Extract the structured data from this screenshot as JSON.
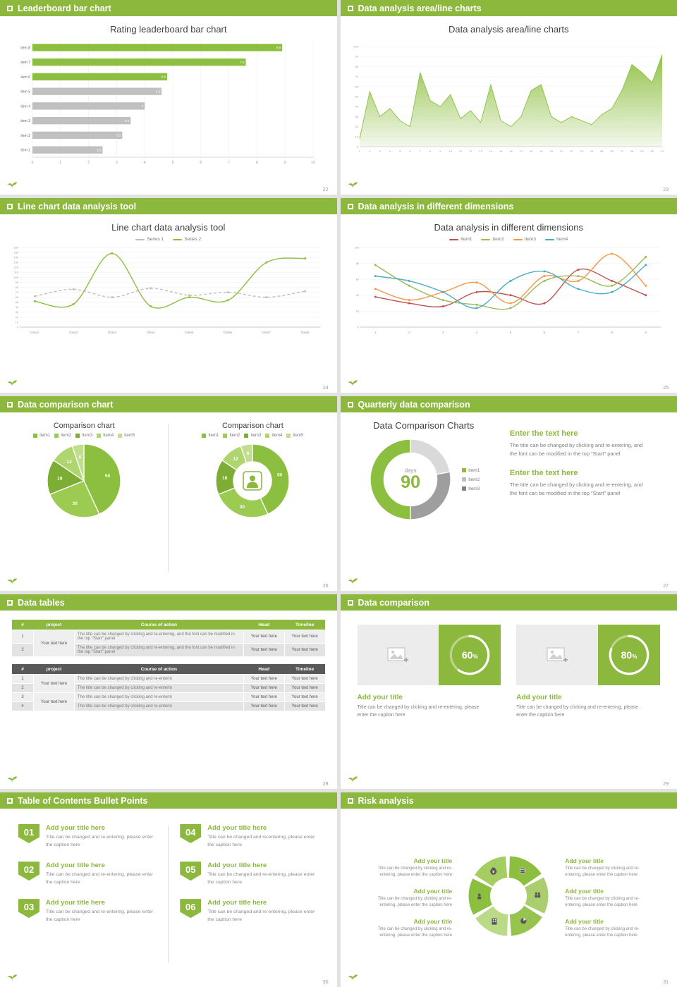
{
  "theme": {
    "accent": "#8CB83E",
    "chart_green": "#8CBF3F",
    "gray_bar": "#C0C0C0",
    "text_dark": "#3F3F3F",
    "text_gray": "#808080"
  },
  "slides": [
    {
      "header": "Leaderboard bar chart",
      "page_num": "22",
      "title": "Rating leaderboard bar chart",
      "chart_data": {
        "type": "barh",
        "categories": [
          "item 8",
          "item 7",
          "item 6",
          "item 5",
          "item 4",
          "item 3",
          "item 2",
          "item 1"
        ],
        "values": [
          8.9,
          7.6,
          4.8,
          4.6,
          4,
          3.5,
          3.2,
          2.5
        ],
        "colors": [
          "#8CBF3F",
          "#8CBF3F",
          "#8CBF3F",
          "#C0C0C0",
          "#C0C0C0",
          "#C0C0C0",
          "#C0C0C0",
          "#C0C0C0"
        ],
        "xlim": [
          0,
          10
        ],
        "xticks": [
          0,
          1,
          2,
          3,
          4,
          5,
          6,
          7,
          8,
          9,
          10
        ]
      }
    },
    {
      "header": "Data analysis area/line charts",
      "page_num": "23",
      "title": "Data analysis area/line charts",
      "chart_data": {
        "type": "area",
        "x": [
          1,
          2,
          3,
          4,
          5,
          6,
          7,
          8,
          9,
          10,
          11,
          12,
          13,
          14,
          15,
          16,
          17,
          18,
          19,
          20,
          21,
          22,
          23,
          24,
          25,
          26,
          27,
          28,
          29,
          30,
          31
        ],
        "values": [
          8,
          55,
          30,
          38,
          26,
          20,
          74,
          46,
          40,
          52,
          28,
          36,
          24,
          62,
          26,
          20,
          30,
          56,
          62,
          30,
          24,
          30,
          26,
          22,
          32,
          38,
          56,
          82,
          74,
          64,
          92
        ],
        "ylim": [
          0,
          100
        ],
        "ystep": 10,
        "color": "#8CBF3F"
      }
    },
    {
      "header": "Line chart data analysis tool",
      "page_num": "24",
      "title": "Line chart data analysis tool",
      "chart_data": {
        "type": "line",
        "categories": [
          "Data1",
          "Data2",
          "Data3",
          "Data4",
          "Data5",
          "Data6",
          "Data7",
          "Data8"
        ],
        "ylim": [
          0,
          160
        ],
        "ystep": 10,
        "series": [
          {
            "name": "Series 1",
            "color": "#BFBFBF",
            "dash": "4 3",
            "values": [
              62,
              76,
              60,
              78,
              64,
              70,
              60,
              72
            ]
          },
          {
            "name": "Series 2",
            "color": "#8CBF3F",
            "dash": "",
            "values": [
              52,
              46,
              148,
              42,
              60,
              54,
              130,
              138
            ]
          }
        ]
      }
    },
    {
      "header": "Data analysis in different dimensions",
      "page_num": "25",
      "title": "Data analysis in different dimensions",
      "chart_data": {
        "type": "line",
        "categories": [
          "1",
          "2",
          "3",
          "4",
          "5",
          "6",
          "7",
          "8",
          "9"
        ],
        "ylim": [
          0,
          100
        ],
        "ystep": 20,
        "series": [
          {
            "name": "Item1",
            "color": "#C0504D",
            "dash": "",
            "values": [
              38,
              30,
              26,
              44,
              40,
              30,
              72,
              58,
              40
            ]
          },
          {
            "name": "Item2",
            "color": "#9BBB59",
            "dash": "",
            "values": [
              78,
              52,
              34,
              28,
              24,
              58,
              64,
              52,
              88
            ]
          },
          {
            "name": "Item3",
            "color": "#F79646",
            "dash": "",
            "values": [
              48,
              34,
              44,
              56,
              30,
              64,
              58,
              92,
              52
            ]
          },
          {
            "name": "Item4",
            "color": "#4BACC6",
            "dash": "",
            "values": [
              64,
              58,
              44,
              24,
              58,
              70,
              48,
              44,
              78
            ]
          }
        ]
      }
    },
    {
      "header": "Data comparison chart",
      "page_num": "26",
      "left": {
        "title": "Comparison chart",
        "legend": [
          "Item1",
          "Item2",
          "Item3",
          "Item4",
          "Item5"
        ]
      },
      "right": {
        "title": "Comparison chart",
        "legend": [
          "Item1",
          "Item2",
          "Item3",
          "Item4",
          "Item5"
        ]
      },
      "chart_data": [
        {
          "type": "pie",
          "values": [
            50,
            30,
            18,
            12,
            6
          ],
          "labels": [
            "50",
            "30",
            "18",
            "12",
            "6"
          ],
          "colors": [
            "#8CBF3F",
            "#9CCB52",
            "#7EAD36",
            "#AFD56F",
            "#C2DE8C"
          ]
        },
        {
          "type": "pie",
          "donut": 0.52,
          "values": [
            50,
            30,
            18,
            12,
            6
          ],
          "labels": [
            "50",
            "30",
            "18",
            "12",
            "6"
          ],
          "colors": [
            "#8CBF3F",
            "#9CCB52",
            "#7EAD36",
            "#AFD56F",
            "#C2DE8C"
          ]
        }
      ]
    },
    {
      "header": "Quarterly data comparison",
      "page_num": "27",
      "title": "Data Comparison Charts",
      "center_label": "days",
      "center_value": "90",
      "legend": [
        {
          "label": "Item1",
          "color": "#8CBF3F"
        },
        {
          "label": "Item2",
          "color": "#BFBFBF"
        },
        {
          "label": "Item3",
          "color": "#808080"
        }
      ],
      "chart_data": {
        "type": "pie",
        "donut": 0.66,
        "start_deg": 180,
        "values": [
          50,
          22,
          28
        ],
        "colors": [
          "#8CBF3F",
          "#D9D9D9",
          "#9E9E9E"
        ],
        "labels": [
          "",
          "",
          ""
        ]
      },
      "blocks": [
        {
          "heading": "Enter the text here",
          "body": "The title can be changed by clicking and re-entering, and the font can be modified in the top \"Start\" panel"
        },
        {
          "heading": "Enter the text here",
          "body": "The title can be changed by clicking and re-entering, and the font can be modified in the top \"Start\" panel"
        }
      ]
    },
    {
      "header": "Data tables",
      "page_num": "28",
      "table1": {
        "headers": [
          "#",
          "project",
          "Course of action",
          "Head",
          "Timeline"
        ],
        "project_text": "Your text here",
        "rows": [
          {
            "num": "1",
            "action": "The title can be changed by clicking and re-entering, and the font can be modified in the top \"Start\" panel",
            "head": "Your text here",
            "timeline": "Your text here"
          },
          {
            "num": "2",
            "action": "The title can be changed by clicking and re-entering, and the font can be modified in the top \"Start\" panel",
            "head": "Your text here",
            "timeline": "Your text here"
          }
        ]
      },
      "table2": {
        "headers": [
          "#",
          "project",
          "Course of action",
          "Head",
          "Timeline"
        ],
        "project_texts": [
          "Your text here",
          "Your text here"
        ],
        "rows": [
          {
            "num": "1",
            "action": "The title can be changed by clicking and re-enterin",
            "head": "Your text here",
            "timeline": "Your text here"
          },
          {
            "num": "2",
            "action": "The title can be changed by clicking and re-enterin",
            "head": "Your text here",
            "timeline": "Your text here"
          },
          {
            "num": "3",
            "action": "The title can be changed by clicking and re-enterin",
            "head": "Your text here",
            "timeline": "Your text here"
          },
          {
            "num": "4",
            "action": "The title can be changed by clicking and re-enterin",
            "head": "Your text here",
            "timeline": "Your text here"
          }
        ]
      }
    },
    {
      "header": "Data comparison",
      "page_num": "29",
      "cards": [
        {
          "ring": {
            "type": "progress",
            "percent": 60
          },
          "percent_suffix": "%",
          "title": "Add your title",
          "caption": "Title can be changed by clicking and re-entering, please enter the caption here"
        },
        {
          "ring": {
            "type": "progress",
            "percent": 80
          },
          "percent_suffix": "%",
          "title": "Add your title",
          "caption": "Title can be changed by clicking and re-entering, please enter the caption here"
        }
      ]
    },
    {
      "header": "Table of Contents Bullet Points",
      "page_num": "30",
      "items": [
        {
          "num": "01",
          "title": "Add your title here",
          "caption": "Title can be changed and re-entering, please enter the caption here"
        },
        {
          "num": "02",
          "title": "Add your title here",
          "caption": "Title can be changed and re-entering, please enter the caption here"
        },
        {
          "num": "03",
          "title": "Add your title here",
          "caption": "Title can be changed and re-entering, please enter the caption here"
        },
        {
          "num": "04",
          "title": "Add your title here",
          "caption": "Title can be changed and re-entering, please enter the caption here"
        },
        {
          "num": "05",
          "title": "Add your title here",
          "caption": "Title can be changed and re-entering, please enter the caption here"
        },
        {
          "num": "06",
          "title": "Add your title here",
          "caption": "Title can be changed and re-entering, please enter the caption here"
        }
      ]
    },
    {
      "header": "Risk analysis",
      "page_num": "31",
      "blocks_left": [
        {
          "title": "Add your title",
          "caption": "Title can be changed by clicking and re-entering, please enter the caption here"
        },
        {
          "title": "Add your title",
          "caption": "Title can be changed by clicking and re-entering, please enter the caption here"
        },
        {
          "title": "Add your title",
          "caption": "Title can be changed by clicking and re-entering, please enter the caption here"
        }
      ],
      "blocks_right": [
        {
          "title": "Add your title",
          "caption": "Title can be changed by clicking and re-entering, please enter the caption here"
        },
        {
          "title": "Add your title",
          "caption": "Title can be changed by clicking and re-entering, please enter the caption here"
        },
        {
          "title": "Add your title",
          "caption": "Title can be changed by clicking and re-entering, please enter the caption here"
        }
      ],
      "icons": [
        "money-bag",
        "coins",
        "people",
        "user",
        "building",
        "pie-chart"
      ]
    }
  ]
}
